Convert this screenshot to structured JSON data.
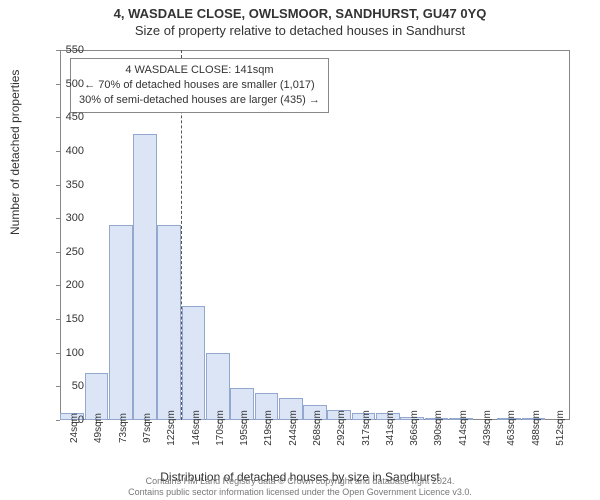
{
  "title": {
    "line1": "4, WASDALE CLOSE, OWLSMOOR, SANDHURST, GU47 0YQ",
    "line2": "Size of property relative to detached houses in Sandhurst",
    "fontsize": 13,
    "color": "#333333"
  },
  "chart": {
    "type": "histogram",
    "background_color": "#ffffff",
    "border_color": "#888888",
    "bar_fill": "#dbe5f6",
    "bar_stroke": "#94a8cf",
    "ylabel": "Number of detached properties",
    "xlabel": "Distribution of detached houses by size in Sandhurst",
    "label_fontsize": 12,
    "ylim": [
      0,
      550
    ],
    "yticks": [
      0,
      50,
      100,
      150,
      200,
      250,
      300,
      350,
      400,
      450,
      500,
      550
    ],
    "xtick_labels": [
      "24sqm",
      "49sqm",
      "73sqm",
      "97sqm",
      "122sqm",
      "146sqm",
      "170sqm",
      "195sqm",
      "219sqm",
      "244sqm",
      "268sqm",
      "292sqm",
      "317sqm",
      "341sqm",
      "366sqm",
      "390sqm",
      "414sqm",
      "439sqm",
      "463sqm",
      "488sqm",
      "512sqm"
    ],
    "bar_values": [
      10,
      70,
      290,
      425,
      290,
      170,
      100,
      48,
      40,
      32,
      22,
      15,
      10,
      10,
      5,
      2,
      1,
      0,
      1,
      1,
      0
    ],
    "reference_line": {
      "x_index_before": 4,
      "style": "dashed",
      "color": "#555555"
    },
    "info_box": {
      "line1": "4 WASDALE CLOSE: 141sqm",
      "line2": "← 70% of detached houses are smaller (1,017)",
      "line3": "30% of semi-detached houses are larger (435) →",
      "border_color": "#888888",
      "background_color": "#ffffff",
      "fontsize": 11
    }
  },
  "footer": {
    "line1": "Contains HM Land Registry data © Crown copyright and database right 2024.",
    "line2": "Contains public sector information licensed under the Open Government Licence v3.0.",
    "color": "#777777",
    "fontsize": 9
  }
}
